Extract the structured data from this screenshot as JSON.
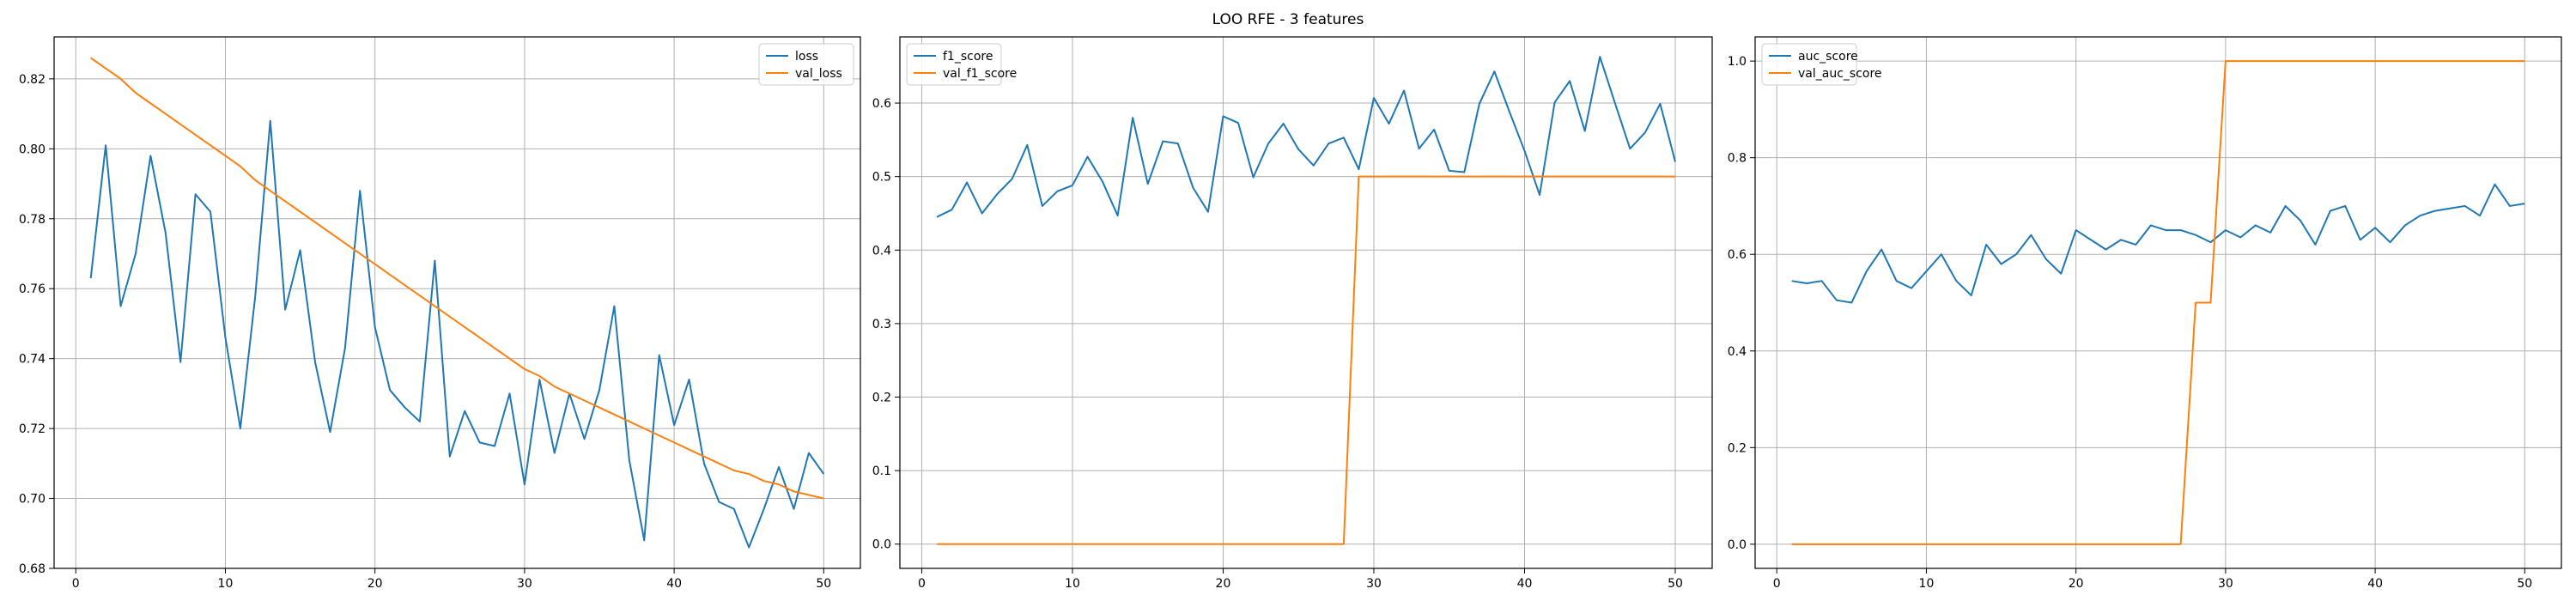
{
  "figure": {
    "title": "LOO RFE - 3 features"
  },
  "colors": {
    "series1": "#1f77b4",
    "series2": "#ff7f0e",
    "grid": "#b0b0b0",
    "axis": "#000000"
  },
  "chart_data": [
    {
      "type": "line",
      "grid": true,
      "legend": "top-right",
      "xlim": [
        -1.45,
        52.45
      ],
      "ylim": [
        0.68,
        0.832
      ],
      "xticks": [
        0,
        10,
        20,
        30,
        40,
        50
      ],
      "yticks": [
        0.68,
        0.7,
        0.72,
        0.74,
        0.76,
        0.78,
        0.8,
        0.82
      ],
      "xtick_labels": [
        "0",
        "10",
        "20",
        "30",
        "40",
        "50"
      ],
      "ytick_labels": [
        "0.68",
        "0.70",
        "0.72",
        "0.74",
        "0.76",
        "0.78",
        "0.80",
        "0.82"
      ],
      "x": [
        1,
        2,
        3,
        4,
        5,
        6,
        7,
        8,
        9,
        10,
        11,
        12,
        13,
        14,
        15,
        16,
        17,
        18,
        19,
        20,
        21,
        22,
        23,
        24,
        25,
        26,
        27,
        28,
        29,
        30,
        31,
        32,
        33,
        34,
        35,
        36,
        37,
        38,
        39,
        40,
        41,
        42,
        43,
        44,
        45,
        46,
        47,
        48,
        49,
        50
      ],
      "series": [
        {
          "name": "loss",
          "values": [
            0.763,
            0.801,
            0.755,
            0.77,
            0.798,
            0.776,
            0.739,
            0.787,
            0.782,
            0.746,
            0.72,
            0.758,
            0.808,
            0.754,
            0.771,
            0.739,
            0.719,
            0.743,
            0.788,
            0.749,
            0.731,
            0.726,
            0.722,
            0.768,
            0.712,
            0.725,
            0.716,
            0.715,
            0.73,
            0.704,
            0.734,
            0.713,
            0.73,
            0.717,
            0.731,
            0.755,
            0.711,
            0.688,
            0.741,
            0.721,
            0.734,
            0.71,
            0.699,
            0.697,
            0.686,
            0.697,
            0.709,
            0.697,
            0.713,
            0.707
          ]
        },
        {
          "name": "val_loss",
          "values": [
            0.826,
            0.823,
            0.82,
            0.816,
            0.813,
            0.81,
            0.807,
            0.804,
            0.801,
            0.798,
            0.795,
            0.791,
            0.788,
            0.785,
            0.782,
            0.779,
            0.776,
            0.773,
            0.77,
            0.767,
            0.764,
            0.761,
            0.758,
            0.755,
            0.752,
            0.749,
            0.746,
            0.743,
            0.74,
            0.737,
            0.735,
            0.732,
            0.73,
            0.728,
            0.726,
            0.724,
            0.722,
            0.72,
            0.718,
            0.716,
            0.714,
            0.712,
            0.71,
            0.708,
            0.707,
            0.705,
            0.704,
            0.702,
            0.701,
            0.7
          ]
        }
      ]
    },
    {
      "type": "line",
      "grid": true,
      "legend": "top-left",
      "xlim": [
        -1.45,
        52.45
      ],
      "ylim": [
        -0.033,
        0.69
      ],
      "xticks": [
        0,
        10,
        20,
        30,
        40,
        50
      ],
      "yticks": [
        0.0,
        0.1,
        0.2,
        0.3,
        0.4,
        0.5,
        0.6
      ],
      "xtick_labels": [
        "0",
        "10",
        "20",
        "30",
        "40",
        "50"
      ],
      "ytick_labels": [
        "0.0",
        "0.1",
        "0.2",
        "0.3",
        "0.4",
        "0.5",
        "0.6"
      ],
      "x": [
        1,
        2,
        3,
        4,
        5,
        6,
        7,
        8,
        9,
        10,
        11,
        12,
        13,
        14,
        15,
        16,
        17,
        18,
        19,
        20,
        21,
        22,
        23,
        24,
        25,
        26,
        27,
        28,
        29,
        30,
        31,
        32,
        33,
        34,
        35,
        36,
        37,
        38,
        39,
        40,
        41,
        42,
        43,
        44,
        45,
        46,
        47,
        48,
        49,
        50
      ],
      "series": [
        {
          "name": "f1_score",
          "values": [
            0.445,
            0.455,
            0.492,
            0.45,
            0.476,
            0.497,
            0.543,
            0.46,
            0.48,
            0.488,
            0.527,
            0.493,
            0.447,
            0.58,
            0.49,
            0.548,
            0.545,
            0.485,
            0.452,
            0.582,
            0.573,
            0.499,
            0.545,
            0.572,
            0.537,
            0.515,
            0.545,
            0.553,
            0.51,
            0.607,
            0.572,
            0.617,
            0.538,
            0.564,
            0.508,
            0.506,
            0.599,
            0.643,
            0.588,
            0.535,
            0.475,
            0.601,
            0.63,
            0.562,
            0.663,
            0.6,
            0.538,
            0.56,
            0.599,
            0.52
          ]
        },
        {
          "name": "val_f1_score",
          "values": [
            0,
            0,
            0,
            0,
            0,
            0,
            0,
            0,
            0,
            0,
            0,
            0,
            0,
            0,
            0,
            0,
            0,
            0,
            0,
            0,
            0,
            0,
            0,
            0,
            0,
            0,
            0,
            0,
            0.5,
            0.5,
            0.5,
            0.5,
            0.5,
            0.5,
            0.5,
            0.5,
            0.5,
            0.5,
            0.5,
            0.5,
            0.5,
            0.5,
            0.5,
            0.5,
            0.5,
            0.5,
            0.5,
            0.5,
            0.5,
            0.5
          ]
        }
      ]
    },
    {
      "type": "line",
      "grid": true,
      "legend": "top-left",
      "xlim": [
        -1.45,
        52.45
      ],
      "ylim": [
        -0.05,
        1.05
      ],
      "xticks": [
        0,
        10,
        20,
        30,
        40,
        50
      ],
      "yticks": [
        0.0,
        0.2,
        0.4,
        0.6,
        0.8,
        1.0
      ],
      "xtick_labels": [
        "0",
        "10",
        "20",
        "30",
        "40",
        "50"
      ],
      "ytick_labels": [
        "0.0",
        "0.2",
        "0.4",
        "0.6",
        "0.8",
        "1.0"
      ],
      "x": [
        1,
        2,
        3,
        4,
        5,
        6,
        7,
        8,
        9,
        10,
        11,
        12,
        13,
        14,
        15,
        16,
        17,
        18,
        19,
        20,
        21,
        22,
        23,
        24,
        25,
        26,
        27,
        28,
        29,
        30,
        31,
        32,
        33,
        34,
        35,
        36,
        37,
        38,
        39,
        40,
        41,
        42,
        43,
        44,
        45,
        46,
        47,
        48,
        49,
        50
      ],
      "series": [
        {
          "name": "auc_score",
          "values": [
            0.545,
            0.54,
            0.545,
            0.505,
            0.5,
            0.565,
            0.61,
            0.545,
            0.53,
            0.565,
            0.6,
            0.545,
            0.515,
            0.62,
            0.58,
            0.6,
            0.64,
            0.59,
            0.56,
            0.65,
            0.63,
            0.61,
            0.63,
            0.62,
            0.66,
            0.65,
            0.65,
            0.64,
            0.625,
            0.65,
            0.635,
            0.66,
            0.645,
            0.7,
            0.67,
            0.62,
            0.69,
            0.7,
            0.63,
            0.655,
            0.625,
            0.66,
            0.68,
            0.69,
            0.695,
            0.7,
            0.68,
            0.745,
            0.7,
            0.705
          ]
        },
        {
          "name": "val_auc_score",
          "values": [
            0,
            0,
            0,
            0,
            0,
            0,
            0,
            0,
            0,
            0,
            0,
            0,
            0,
            0,
            0,
            0,
            0,
            0,
            0,
            0,
            0,
            0,
            0,
            0,
            0,
            0,
            0,
            0.5,
            0.5,
            1.0,
            1.0,
            1.0,
            1.0,
            1.0,
            1.0,
            1.0,
            1.0,
            1.0,
            1.0,
            1.0,
            1.0,
            1.0,
            1.0,
            1.0,
            1.0,
            1.0,
            1.0,
            1.0,
            1.0,
            1.0
          ]
        }
      ]
    }
  ]
}
